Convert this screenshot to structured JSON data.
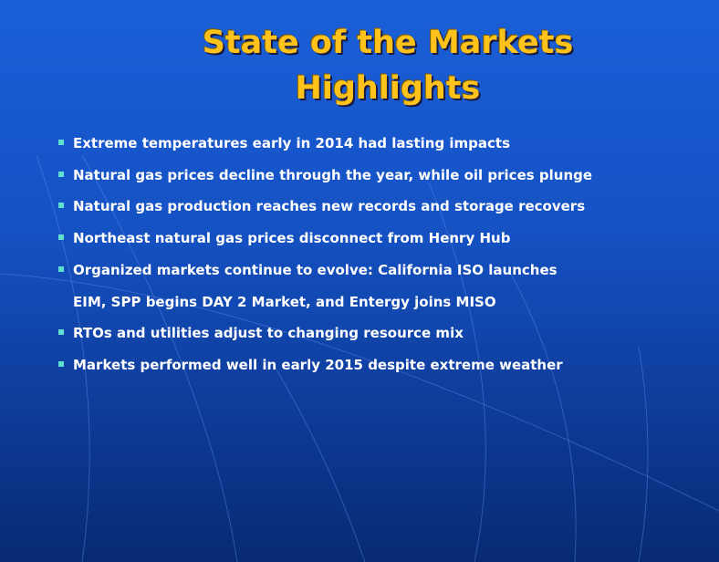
{
  "slide": {
    "title": [
      "State of the Markets",
      "Highlights"
    ],
    "bullets": [
      [
        "Extreme temperatures early in 2014 had lasting impacts"
      ],
      [
        "Natural gas prices decline through the year, while oil prices plunge"
      ],
      [
        "Natural gas production reaches new records and storage recovers"
      ],
      [
        "Northeast natural gas prices disconnect from Henry Hub"
      ],
      [
        "Organized markets continue to evolve: California ISO launches",
        "EIM, SPP begins DAY 2 Market, and Entergy joins MISO"
      ],
      [
        "RTOs and utilities adjust to changing resource mix"
      ],
      [
        "Markets performed well in early 2015 despite extreme weather"
      ]
    ]
  }
}
